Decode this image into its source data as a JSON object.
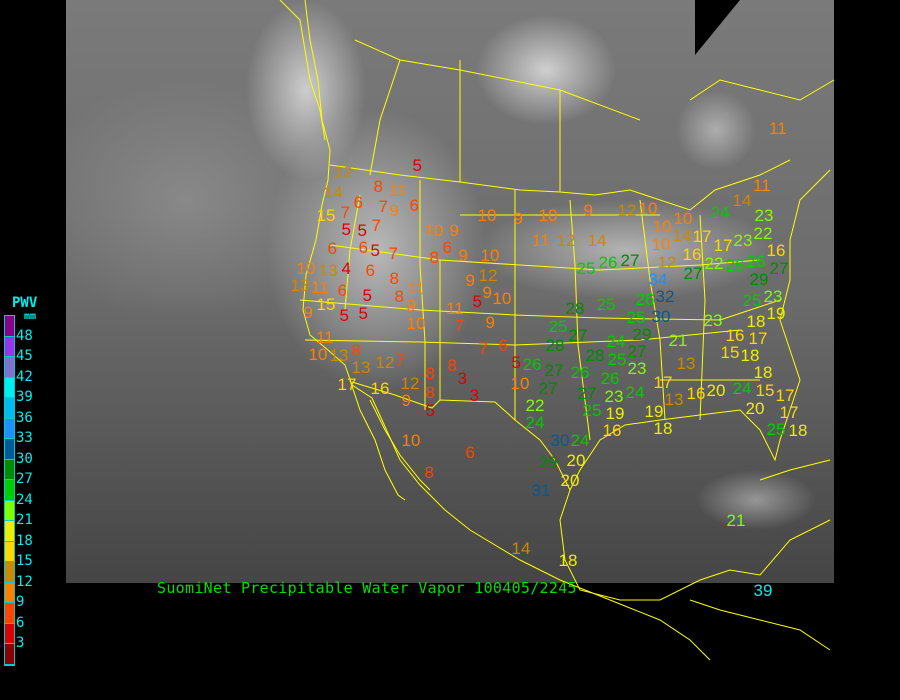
{
  "caption": "SuomiNet Precipitable Water Vapor 100405/2245",
  "legend": {
    "title": "PWV",
    "unit": "mm",
    "ticks": [
      "48",
      "45",
      "42",
      "39",
      "36",
      "33",
      "30",
      "27",
      "24",
      "21",
      "18",
      "15",
      "12",
      "9",
      "6",
      "3"
    ],
    "colors_top_to_bottom": [
      "#8b008b",
      "#9933ee",
      "#8070d0",
      "#00eeee",
      "#00bbee",
      "#1e90ff",
      "#005a9a",
      "#008b00",
      "#00cd00",
      "#7fff00",
      "#eeee00",
      "#ffd700",
      "#cc8800",
      "#ff8000",
      "#ff4500",
      "#dd0000",
      "#8b0000"
    ]
  },
  "map": {
    "background_imagery": "infrared satellite (grayscale)",
    "boundary_color": "#ffff00"
  },
  "stations": [
    5,
    12,
    8,
    11,
    14,
    6,
    7,
    9,
    6,
    15,
    7,
    5,
    5,
    7,
    6,
    5,
    7,
    6,
    6,
    10,
    13,
    4,
    13,
    11,
    6,
    5,
    15,
    9,
    5,
    5,
    8,
    8,
    11,
    9,
    10,
    10,
    9,
    6,
    8,
    9,
    10,
    9,
    12,
    9,
    11,
    5,
    10,
    7,
    9,
    7,
    6,
    11,
    10,
    13,
    8,
    13,
    17,
    16,
    7,
    12,
    12,
    8,
    8,
    9,
    5,
    8,
    3,
    3,
    5,
    10,
    26,
    27,
    27,
    22,
    24,
    26,
    28,
    26,
    25,
    23,
    27,
    25,
    23,
    19,
    16,
    24,
    30,
    24,
    29,
    20,
    20,
    31,
    10,
    6,
    8,
    14,
    18,
    21,
    39,
    10,
    9,
    10,
    11,
    12,
    14,
    9,
    12,
    10,
    10,
    10,
    10,
    12,
    14,
    16,
    17,
    17,
    22,
    27,
    26,
    25,
    26,
    27,
    34,
    32,
    26,
    30,
    25,
    25,
    28,
    25,
    27,
    28,
    24,
    29,
    27,
    24,
    14,
    23,
    22,
    23,
    26,
    29,
    16,
    27,
    25,
    23,
    19,
    18,
    23,
    21,
    13,
    16,
    17,
    15,
    18,
    18,
    17,
    13,
    19,
    18,
    16,
    20,
    24,
    15,
    17,
    20,
    17,
    25,
    18,
    11,
    11
  ]
}
